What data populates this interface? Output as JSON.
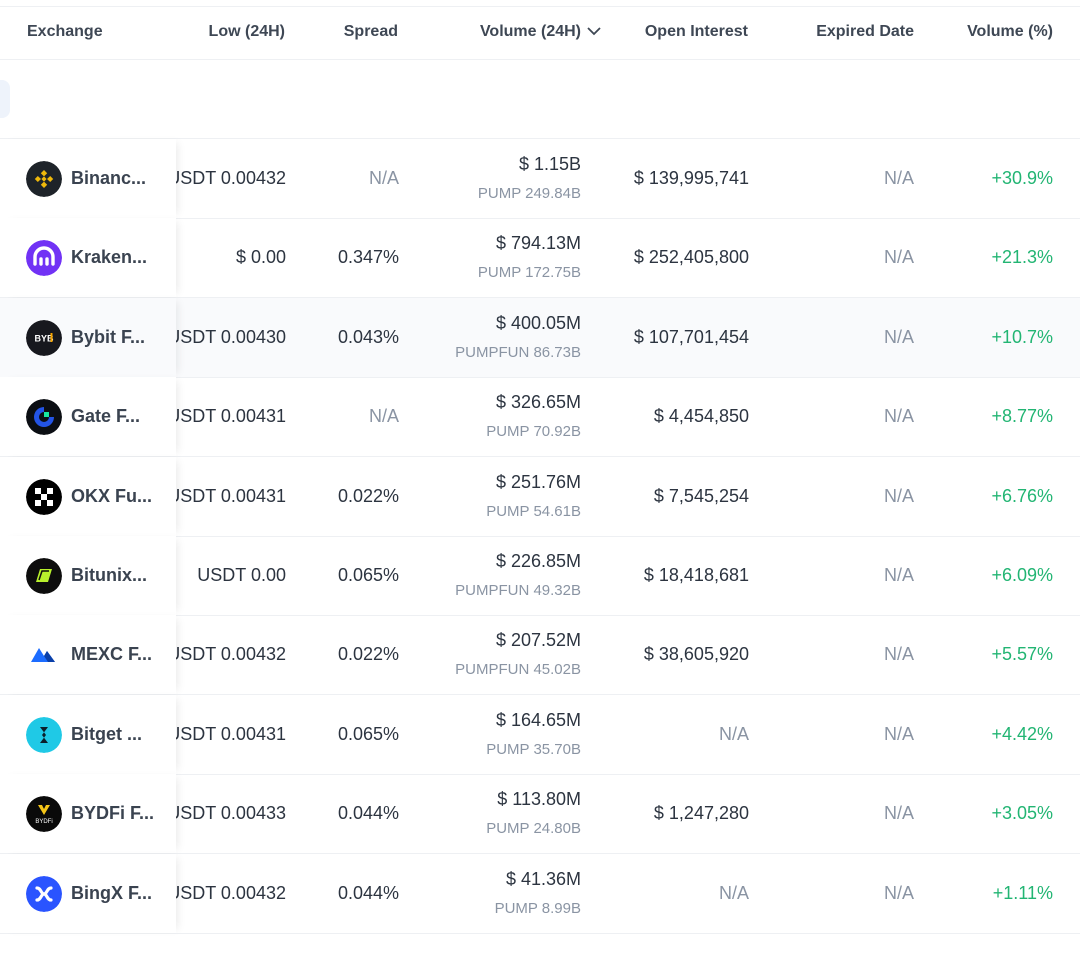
{
  "header": {
    "exchange": "Exchange",
    "low": "Low (24H)",
    "spread": "Spread",
    "volume": "Volume (24H)",
    "open_interest": "Open Interest",
    "expired_date": "Expired Date",
    "volume_pct": "Volume (%)"
  },
  "colors": {
    "positive": "#22b573",
    "muted": "#8a94a3",
    "text": "#2c3440"
  },
  "rows": [
    {
      "name": "Binanc...",
      "icon": "binance-icon",
      "low": "USDT 0.00432",
      "spread": "N/A",
      "volume": "$ 1.15B",
      "volume_base": "PUMP 249.84B",
      "open_interest": "$ 139,995,741",
      "expired": "N/A",
      "volume_pct": "+30.9%"
    },
    {
      "name": "Kraken...",
      "icon": "kraken-icon",
      "low": "$ 0.00",
      "spread": "0.347%",
      "volume": "$ 794.13M",
      "volume_base": "PUMP 172.75B",
      "open_interest": "$ 252,405,800",
      "expired": "N/A",
      "volume_pct": "+21.3%"
    },
    {
      "name": "Bybit F...",
      "icon": "bybit-icon",
      "low": "USDT 0.00430",
      "spread": "0.043%",
      "volume": "$ 400.05M",
      "volume_base": "PUMPFUN 86.73B",
      "open_interest": "$ 107,701,454",
      "expired": "N/A",
      "volume_pct": "+10.7%"
    },
    {
      "name": "Gate F...",
      "icon": "gate-icon",
      "low": "USDT 0.00431",
      "spread": "N/A",
      "volume": "$ 326.65M",
      "volume_base": "PUMP 70.92B",
      "open_interest": "$ 4,454,850",
      "expired": "N/A",
      "volume_pct": "+8.77%"
    },
    {
      "name": "OKX Fu...",
      "icon": "okx-icon",
      "low": "USDT 0.00431",
      "spread": "0.022%",
      "volume": "$ 251.76M",
      "volume_base": "PUMP 54.61B",
      "open_interest": "$ 7,545,254",
      "expired": "N/A",
      "volume_pct": "+6.76%"
    },
    {
      "name": "Bitunix...",
      "icon": "bitunix-icon",
      "low": "USDT 0.00",
      "spread": "0.065%",
      "volume": "$ 226.85M",
      "volume_base": "PUMPFUN 49.32B",
      "open_interest": "$ 18,418,681",
      "expired": "N/A",
      "volume_pct": "+6.09%"
    },
    {
      "name": "MEXC F...",
      "icon": "mexc-icon",
      "low": "USDT 0.00432",
      "spread": "0.022%",
      "volume": "$ 207.52M",
      "volume_base": "PUMPFUN 45.02B",
      "open_interest": "$ 38,605,920",
      "expired": "N/A",
      "volume_pct": "+5.57%"
    },
    {
      "name": "Bitget ...",
      "icon": "bitget-icon",
      "low": "USDT 0.00431",
      "spread": "0.065%",
      "volume": "$ 164.65M",
      "volume_base": "PUMP 35.70B",
      "open_interest": "N/A",
      "expired": "N/A",
      "volume_pct": "+4.42%"
    },
    {
      "name": "BYDFi F...",
      "icon": "bydfi-icon",
      "low": "USDT 0.00433",
      "spread": "0.044%",
      "volume": "$ 113.80M",
      "volume_base": "PUMP 24.80B",
      "open_interest": "$ 1,247,280",
      "expired": "N/A",
      "volume_pct": "+3.05%"
    },
    {
      "name": "BingX F...",
      "icon": "bingx-icon",
      "low": "USDT 0.00432",
      "spread": "0.044%",
      "volume": "$ 41.36M",
      "volume_base": "PUMP 8.99B",
      "open_interest": "N/A",
      "expired": "N/A",
      "volume_pct": "+1.11%"
    }
  ]
}
